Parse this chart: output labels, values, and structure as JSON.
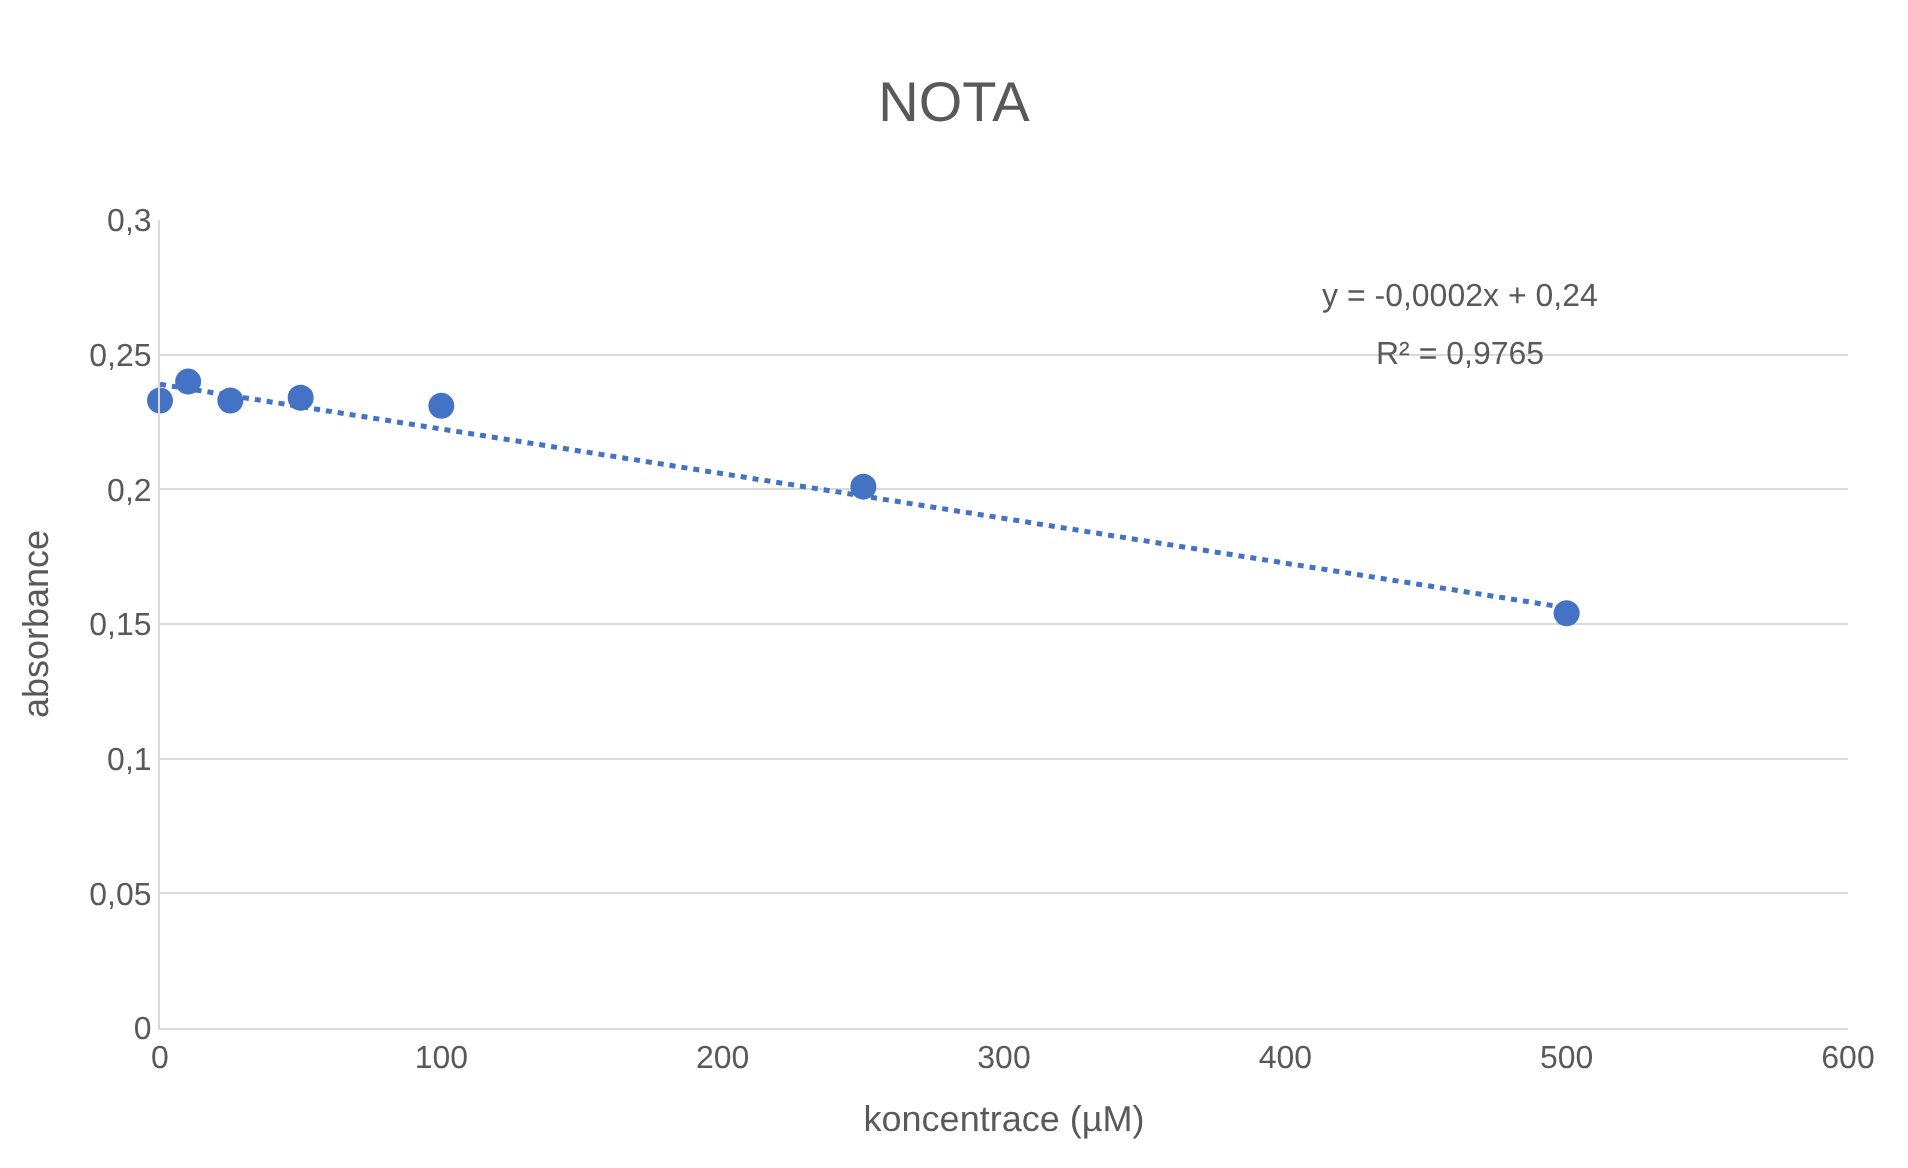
{
  "chart_data": {
    "type": "scatter",
    "title": "NOTA",
    "xlabel": "koncentrace (µM)",
    "ylabel": "absorbance",
    "series": [
      {
        "color": "#4472c4",
        "x": [
          0,
          10,
          25,
          50,
          100,
          250,
          500
        ],
        "values": [
          0.233,
          0.24,
          0.233,
          0.234,
          0.231,
          0.201,
          0.154
        ],
        "marker": "circle"
      },
      {
        "type": "line",
        "color": "#4472c4",
        "x": [
          0,
          500
        ],
        "values": [
          0.239,
          0.156
        ],
        "line_style": "dotted",
        "marker": "none"
      }
    ],
    "annotations": [
      "y = -0,0002x + 0,24",
      "R² = 0,9765"
    ],
    "xlim": [
      0,
      600
    ],
    "xticks": [
      0,
      100,
      200,
      300,
      400,
      500,
      600
    ],
    "ylim": [
      0,
      0.3
    ],
    "yticks": [
      0,
      {
        "value": 0.05,
        "label": "0,05"
      },
      {
        "value": 0.1,
        "label": "0,1"
      },
      {
        "value": 0.15,
        "label": "0,15"
      },
      {
        "value": 0.2,
        "label": "0,2"
      },
      {
        "value": 0.25,
        "label": "0,25"
      },
      {
        "value": 0.3,
        "label": "0,3"
      }
    ],
    "grid": "y"
  }
}
